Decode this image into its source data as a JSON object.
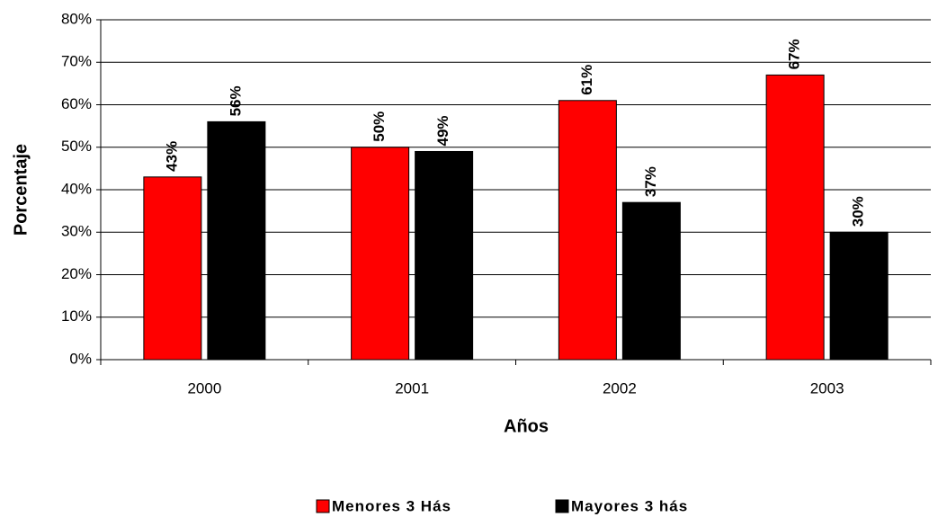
{
  "chart_data": {
    "type": "bar",
    "x_label": "Años",
    "y_label": "Porcentaje",
    "categories": [
      "2000",
      "2001",
      "2002",
      "2003"
    ],
    "series": [
      {
        "name": "Menores 3 Hás",
        "color": "#ff0000",
        "values": [
          43,
          50,
          61,
          67
        ],
        "value_labels": [
          "43%",
          "50%",
          "61%",
          "67%"
        ]
      },
      {
        "name": "Mayores 3 hás",
        "color": "#000000",
        "values": [
          56,
          49,
          37,
          30
        ],
        "value_labels": [
          "56%",
          "49%",
          "37%",
          "30%"
        ]
      }
    ],
    "ylim": [
      0,
      80
    ],
    "yticks": [
      {
        "value": 0,
        "label": "0%"
      },
      {
        "value": 10,
        "label": "10%"
      },
      {
        "value": 20,
        "label": "20%"
      },
      {
        "value": 30,
        "label": "30%"
      },
      {
        "value": 40,
        "label": "40%"
      },
      {
        "value": 50,
        "label": "50%"
      },
      {
        "value": 60,
        "label": "60%"
      },
      {
        "value": 70,
        "label": "70%"
      },
      {
        "value": 80,
        "label": "80%"
      }
    ],
    "grid": true,
    "legend": "bottom"
  }
}
